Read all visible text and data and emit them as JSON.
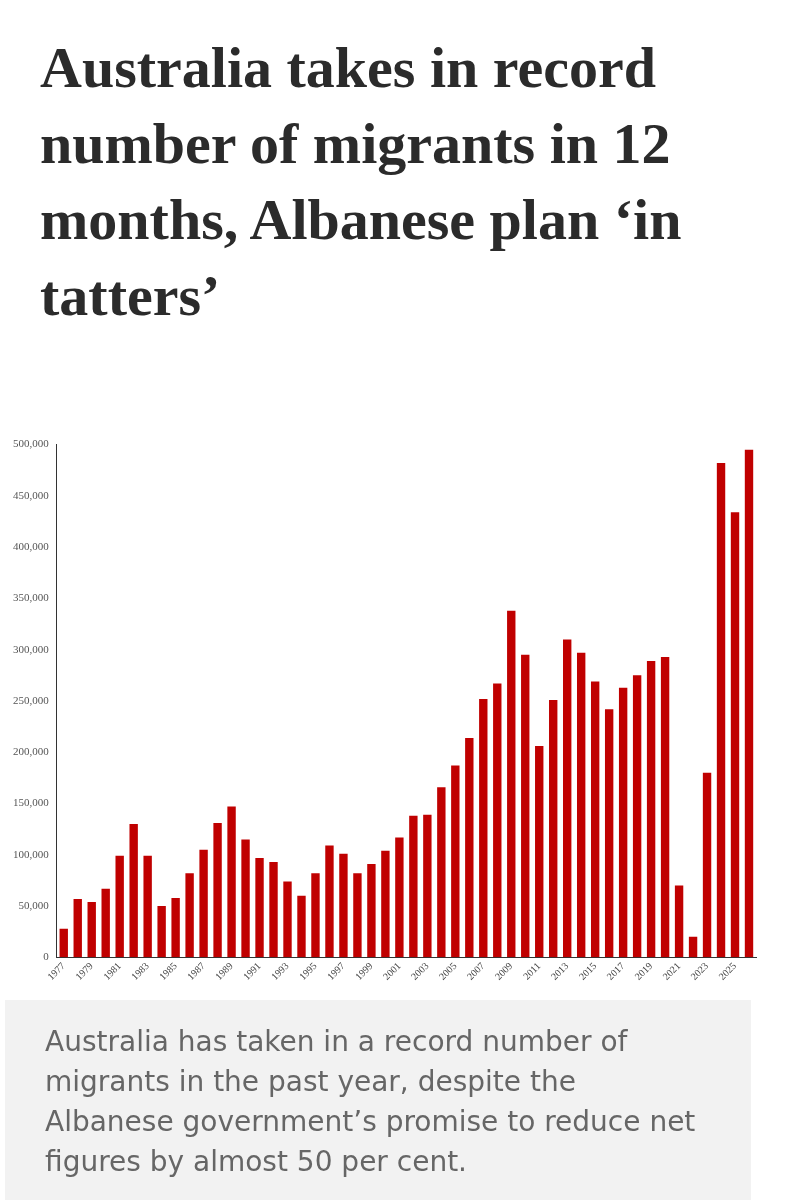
{
  "chart_data": {
    "type": "bar",
    "title": "Australia takes in record number of migrants in 12 months, Albanese plan ‘in tatters’",
    "categories": [
      "1977",
      null,
      "1979",
      null,
      "1981",
      null,
      "1983",
      null,
      "1985",
      null,
      "1987",
      null,
      "1989",
      null,
      "1991",
      null,
      "1993",
      null,
      "1995",
      null,
      "1997",
      null,
      "1999",
      null,
      "2001",
      null,
      "2003",
      null,
      "2005",
      null,
      "2007",
      null,
      "2009",
      null,
      "2011",
      null,
      "2013",
      null,
      "2015",
      null,
      "2017",
      null,
      "2019",
      null,
      "2021",
      null,
      "2023",
      null,
      "2025",
      null
    ],
    "values": [
      28000,
      57000,
      54000,
      67000,
      99000,
      130000,
      99000,
      50000,
      58000,
      82000,
      105000,
      131000,
      147000,
      115000,
      97000,
      93000,
      74000,
      60000,
      82000,
      109000,
      101000,
      82000,
      91000,
      104000,
      117000,
      138000,
      139000,
      166000,
      187000,
      214000,
      252000,
      267000,
      338000,
      295000,
      206000,
      251000,
      310000,
      297000,
      269000,
      242000,
      263000,
      275000,
      289000,
      293000,
      70000,
      20000,
      180000,
      482000,
      434000,
      495000
    ],
    "color": "#c00000",
    "ylim": [
      0,
      500000
    ],
    "yticks": [
      0,
      {
        "value": 50000,
        "label": "50,000"
      },
      {
        "value": 100000,
        "label": "100,000"
      },
      {
        "value": 150000,
        "label": "150,000"
      },
      {
        "value": 200000,
        "label": "200,000"
      },
      {
        "value": 250000,
        "label": "250,000"
      },
      {
        "value": 300000,
        "label": "300,000"
      },
      {
        "value": 350000,
        "label": "350,000"
      },
      {
        "value": 400000,
        "label": "400,000"
      },
      {
        "value": 450000,
        "label": "450,000"
      },
      {
        "value": 500000,
        "label": "500,000"
      }
    ],
    "grid": false,
    "legend": false,
    "annotations": [
      "Australia has taken in a record number of migrants in the past year, despite the Albanese government’s promise to reduce net figures by almost 50 per cent."
    ]
  }
}
